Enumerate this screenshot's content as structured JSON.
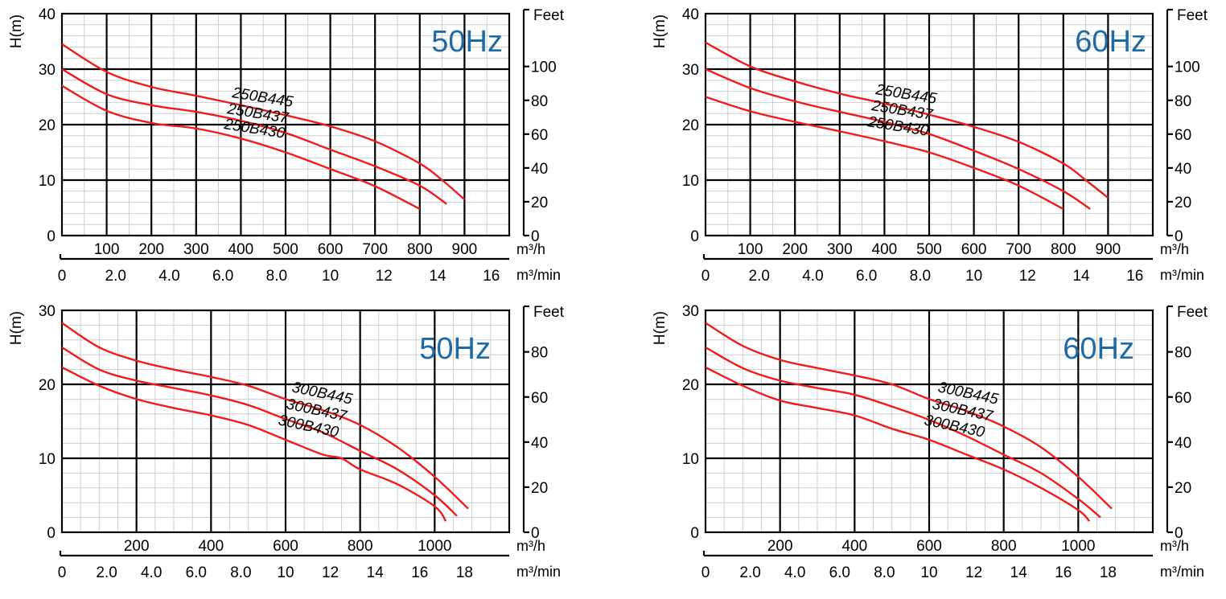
{
  "chart_data": [
    {
      "type": "line",
      "frequency_label": "50Hz",
      "frequency_color": "#1f6aa5",
      "curve_color": "#ee1c1c",
      "ylabel": "H(m)",
      "right_axis_label": "Feet",
      "flow_unit_h": "m³/h",
      "flow_unit_min": "m³/min",
      "ylim": [
        0,
        40
      ],
      "xlim": [
        0,
        1000
      ],
      "y_ticks": [
        0,
        10,
        20,
        30,
        40
      ],
      "x_ticks_m3h": [
        100,
        200,
        300,
        400,
        500,
        600,
        700,
        800,
        900
      ],
      "x_ticks_m3min": [
        "0",
        "2.0",
        "4.0",
        "6.0",
        "8.0",
        "10",
        "12",
        "14",
        "16"
      ],
      "feet_ticks": [
        "0",
        "20",
        "40",
        "60",
        "80",
        "100"
      ],
      "series": [
        {
          "name": "250B445",
          "x": [
            0,
            100,
            200,
            300,
            400,
            500,
            600,
            700,
            800,
            850,
            900
          ],
          "y": [
            34.5,
            29.5,
            26.8,
            25.2,
            23.5,
            21.7,
            19.7,
            17.0,
            13.0,
            10.0,
            6.5
          ]
        },
        {
          "name": "250B437",
          "x": [
            0,
            100,
            200,
            300,
            400,
            500,
            600,
            700,
            800,
            860
          ],
          "y": [
            30.0,
            25.5,
            23.5,
            22.3,
            20.7,
            18.5,
            15.5,
            12.5,
            9.0,
            5.7
          ]
        },
        {
          "name": "250B430",
          "x": [
            0,
            100,
            200,
            300,
            400,
            500,
            600,
            700,
            800
          ],
          "y": [
            27.0,
            22.5,
            20.3,
            19.3,
            17.5,
            15.0,
            12.0,
            8.9,
            4.8
          ]
        }
      ]
    },
    {
      "type": "line",
      "frequency_label": "60Hz",
      "frequency_color": "#1f6aa5",
      "curve_color": "#ee1c1c",
      "ylabel": "H(m)",
      "right_axis_label": "Feet",
      "flow_unit_h": "m³/h",
      "flow_unit_min": "m³/min",
      "ylim": [
        0,
        40
      ],
      "xlim": [
        0,
        1000
      ],
      "y_ticks": [
        0,
        10,
        20,
        30,
        40
      ],
      "x_ticks_m3h": [
        100,
        200,
        300,
        400,
        500,
        600,
        700,
        800,
        900
      ],
      "x_ticks_m3min": [
        "0",
        "2.0",
        "4.0",
        "6.0",
        "8.0",
        "10",
        "12",
        "14",
        "16"
      ],
      "feet_ticks": [
        "0",
        "20",
        "40",
        "60",
        "80",
        "100"
      ],
      "series": [
        {
          "name": "250B445",
          "x": [
            0,
            100,
            200,
            300,
            400,
            500,
            600,
            700,
            800,
            850,
            900
          ],
          "y": [
            34.8,
            30.5,
            27.8,
            25.6,
            23.8,
            21.8,
            19.6,
            16.9,
            13.0,
            10.0,
            6.8
          ]
        },
        {
          "name": "250B437",
          "x": [
            0,
            100,
            200,
            300,
            400,
            500,
            600,
            700,
            800,
            860
          ],
          "y": [
            30.0,
            26.6,
            24.2,
            22.3,
            20.5,
            18.3,
            15.3,
            12.0,
            8.0,
            4.8
          ]
        },
        {
          "name": "250B430",
          "x": [
            0,
            100,
            200,
            300,
            400,
            500,
            600,
            700,
            800
          ],
          "y": [
            25.0,
            22.4,
            20.5,
            18.8,
            17.0,
            15.0,
            12.2,
            9.0,
            4.8
          ]
        }
      ]
    },
    {
      "type": "line",
      "frequency_label": "50Hz",
      "frequency_color": "#1f6aa5",
      "curve_color": "#ee1c1c",
      "ylabel": "H(m)",
      "right_axis_label": "Feet",
      "flow_unit_h": "m³/h",
      "flow_unit_min": "m³/min",
      "ylim": [
        0,
        30
      ],
      "xlim": [
        0,
        1200
      ],
      "y_ticks": [
        0,
        10,
        20,
        30
      ],
      "x_ticks_m3h": [
        200,
        400,
        600,
        800,
        1000
      ],
      "x_ticks_m3min": [
        "0",
        "2.0",
        "4.0",
        "6.0",
        "8.0",
        "10",
        "12",
        "14",
        "16",
        "18"
      ],
      "feet_ticks": [
        "0",
        "20",
        "40",
        "60",
        "80"
      ],
      "series": [
        {
          "name": "300B445",
          "x": [
            0,
            100,
            200,
            300,
            400,
            500,
            600,
            700,
            800,
            900,
            1000,
            1090
          ],
          "y": [
            28.3,
            25.0,
            23.2,
            22.0,
            21.0,
            19.8,
            18.0,
            16.5,
            14.5,
            11.5,
            7.5,
            3.2
          ]
        },
        {
          "name": "300B437",
          "x": [
            0,
            100,
            200,
            300,
            400,
            500,
            600,
            700,
            800,
            900,
            1000,
            1060
          ],
          "y": [
            25.0,
            22.0,
            20.5,
            19.5,
            18.5,
            17.2,
            15.3,
            13.5,
            11.0,
            8.5,
            5.0,
            2.2
          ]
        },
        {
          "name": "300B430",
          "x": [
            0,
            100,
            200,
            300,
            400,
            500,
            600,
            700,
            750,
            800,
            900,
            1000,
            1030
          ],
          "y": [
            22.3,
            19.8,
            18.0,
            16.8,
            15.8,
            14.5,
            12.5,
            10.5,
            10.0,
            8.5,
            6.5,
            3.5,
            1.5
          ]
        }
      ]
    },
    {
      "type": "line",
      "frequency_label": "60Hz",
      "frequency_color": "#1f6aa5",
      "curve_color": "#ee1c1c",
      "ylabel": "H(m)",
      "right_axis_label": "Feet",
      "flow_unit_h": "m³/h",
      "flow_unit_min": "m³/min",
      "ylim": [
        0,
        30
      ],
      "xlim": [
        0,
        1200
      ],
      "y_ticks": [
        0,
        10,
        20,
        30
      ],
      "x_ticks_m3h": [
        200,
        400,
        600,
        800,
        1000
      ],
      "x_ticks_m3min": [
        "0",
        "2.0",
        "4.0",
        "6.0",
        "8.0",
        "10",
        "12",
        "14",
        "16",
        "18"
      ],
      "feet_ticks": [
        "0",
        "20",
        "40",
        "60",
        "80"
      ],
      "series": [
        {
          "name": "300B445",
          "x": [
            0,
            100,
            200,
            300,
            400,
            500,
            600,
            700,
            800,
            900,
            1000,
            1090
          ],
          "y": [
            28.3,
            25.2,
            23.3,
            22.2,
            21.2,
            20.0,
            18.0,
            16.4,
            14.3,
            11.5,
            7.5,
            3.2
          ]
        },
        {
          "name": "300B437",
          "x": [
            0,
            100,
            200,
            300,
            400,
            500,
            600,
            700,
            800,
            900,
            1000,
            1060
          ],
          "y": [
            25.0,
            22.2,
            20.5,
            19.5,
            18.6,
            17.0,
            15.2,
            13.0,
            10.5,
            8.0,
            4.5,
            2.0
          ]
        },
        {
          "name": "300B430",
          "x": [
            0,
            100,
            200,
            300,
            400,
            500,
            600,
            700,
            800,
            900,
            1000,
            1030
          ],
          "y": [
            22.3,
            19.8,
            17.8,
            16.8,
            15.8,
            14.0,
            12.5,
            10.5,
            8.5,
            6.0,
            3.0,
            1.5
          ]
        }
      ]
    }
  ]
}
